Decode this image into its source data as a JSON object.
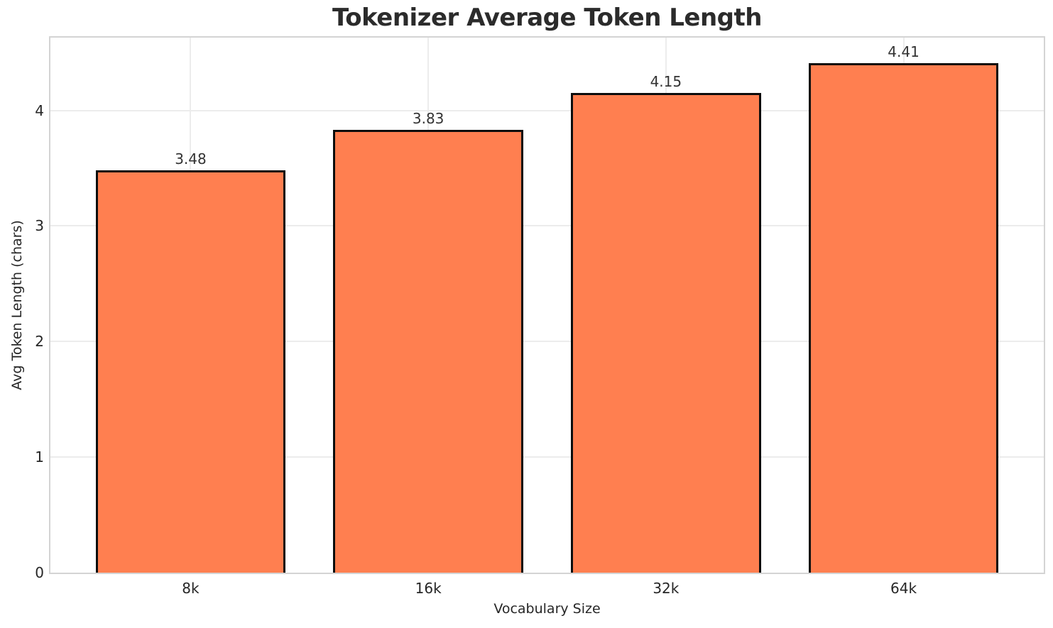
{
  "chart_data": {
    "type": "bar",
    "title": "Tokenizer Average Token Length",
    "xlabel": "Vocabulary Size",
    "ylabel": "Avg Token Length (chars)",
    "categories": [
      "8k",
      "16k",
      "32k",
      "64k"
    ],
    "values": [
      3.48,
      3.83,
      4.15,
      4.41
    ],
    "value_labels": [
      "3.48",
      "3.83",
      "4.15",
      "4.41"
    ],
    "yticks": [
      0,
      1,
      2,
      3,
      4
    ],
    "ytick_labels": [
      "0",
      "1",
      "2",
      "3",
      "4"
    ],
    "ylim": [
      0,
      4.63
    ],
    "grid": true,
    "legend": "none",
    "colors": {
      "bar_fill": "#FF7F50",
      "bar_edge": "#0d0d0d",
      "grid_line": "#ececec",
      "spine": "#d4d4d4",
      "text": "#262626",
      "value_label_text": "#333333",
      "background": "#ffffff"
    }
  }
}
